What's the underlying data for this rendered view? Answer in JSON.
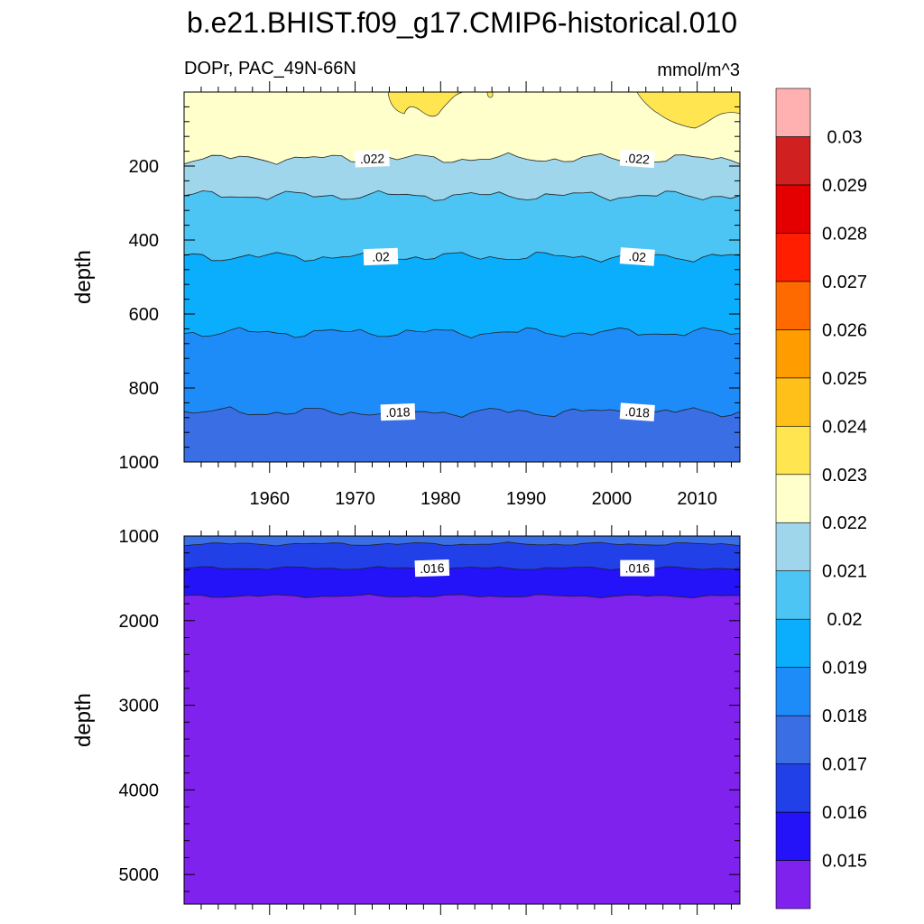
{
  "title": "b.e21.BHIST.f09_g17.CMIP6-historical.010",
  "chart_data": {
    "type": "contour",
    "variable": "DOPr",
    "region": "PAC_49N-66N",
    "left_subtitle": "DOPr, PAC_49N-66N",
    "units": "mmol/m^3",
    "x_range": [
      1950,
      2015
    ],
    "x_ticks": [
      1960,
      1970,
      1980,
      1990,
      2000,
      2010
    ],
    "x_tick_labels": [
      "1960",
      "1970",
      "1980",
      "1990",
      "2000",
      "2010"
    ],
    "colorbar": {
      "levels": [
        "0.015",
        "0.016",
        "0.017",
        "0.018",
        "0.019",
        "0.02",
        "0.021",
        "0.022",
        "0.023",
        "0.024",
        "0.025",
        "0.026",
        "0.027",
        "0.028",
        "0.029",
        "0.03"
      ],
      "colors": [
        "#7F22EE",
        "#2412F8",
        "#2240E8",
        "#3A6EE4",
        "#1E8CF8",
        "#0AAEFC",
        "#4CC4F4",
        "#A0D6EC",
        "#FFFFCC",
        "#FFE650",
        "#FFC01A",
        "#FF9C00",
        "#FF6A00",
        "#FF1E00",
        "#E40000",
        "#D02020",
        "#FFB0B0"
      ]
    },
    "panels": [
      {
        "name": "upper",
        "ylabel": "depth",
        "y_range": [
          1000,
          0
        ],
        "y_ticks": [
          200,
          400,
          600,
          800,
          1000
        ],
        "y_tick_labels": [
          "200",
          "400",
          "600",
          "800",
          "1000"
        ],
        "bands": [
          {
            "from_depth": 0,
            "to_depth": 180,
            "color": "#FFFFCC"
          },
          {
            "from_depth": 180,
            "to_depth": 280,
            "color": "#A0D6EC"
          },
          {
            "from_depth": 280,
            "to_depth": 445,
            "color": "#4CC4F4"
          },
          {
            "from_depth": 445,
            "to_depth": 650,
            "color": "#0AAEFC"
          },
          {
            "from_depth": 650,
            "to_depth": 865,
            "color": "#1E8CF8"
          },
          {
            "from_depth": 865,
            "to_depth": 1000,
            "color": "#3A6EE4"
          }
        ],
        "contours": [
          {
            "level": ".022",
            "depth": 180,
            "label_years": [
              1972,
              2003
            ]
          },
          {
            "level": ".0215",
            "depth": 280,
            "label_years": []
          },
          {
            "level": ".02",
            "depth": 445,
            "label_years": [
              1973,
              2003
            ]
          },
          {
            "level": ".0195",
            "depth": 650,
            "label_years": []
          },
          {
            "level": ".018",
            "depth": 865,
            "label_years": [
              1975,
              2003
            ]
          }
        ],
        "patches": [
          {
            "color": "#FFE650",
            "note": "near-surface 0.023 patches ~1975-1980 and ~2004-2015"
          }
        ]
      },
      {
        "name": "lower",
        "ylabel": "depth",
        "y_range": [
          5350,
          1000
        ],
        "y_ticks": [
          1000,
          2000,
          3000,
          4000,
          5000
        ],
        "y_tick_labels": [
          "1000",
          "2000",
          "3000",
          "4000",
          "5000"
        ],
        "bands": [
          {
            "from_depth": 1000,
            "to_depth": 1095,
            "color": "#3A6EE4"
          },
          {
            "from_depth": 1095,
            "to_depth": 1380,
            "color": "#2240E8"
          },
          {
            "from_depth": 1380,
            "to_depth": 1710,
            "color": "#2412F8"
          },
          {
            "from_depth": 1710,
            "to_depth": 5350,
            "color": "#7F22EE"
          }
        ],
        "contours": [
          {
            "level": ".017",
            "depth": 1095,
            "label_years": []
          },
          {
            "level": ".016",
            "depth": 1380,
            "label_years": [
              1979,
              2003
            ]
          },
          {
            "level": ".015",
            "depth": 1710,
            "label_years": []
          }
        ]
      }
    ]
  }
}
